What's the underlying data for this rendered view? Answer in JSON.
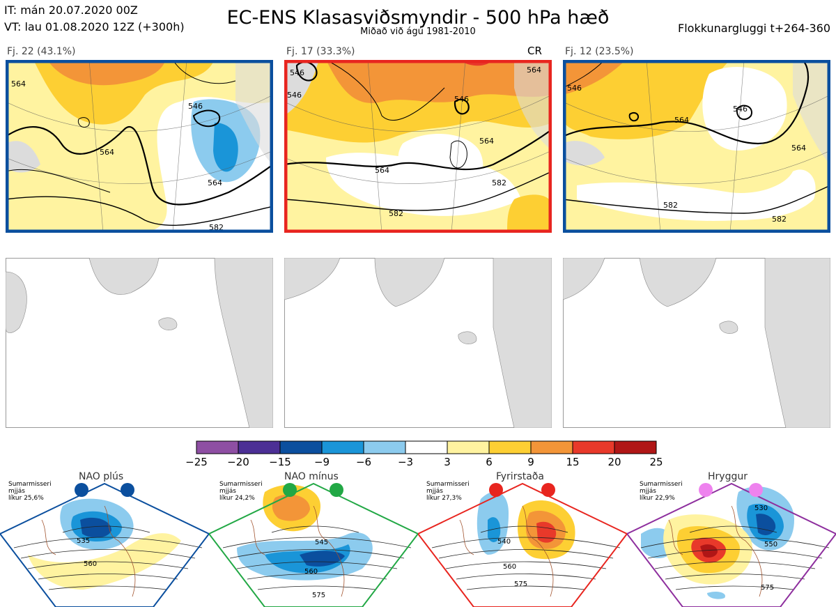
{
  "header": {
    "it_line": "IT: mán 20.07.2020 00Z",
    "vt_line": "VT: lau 01.08.2020 12Z  (+300h)",
    "title": "EC-ENS Klasasviðsmyndir - 500 hPa hæð",
    "subtitle": "Miðað við ágú 1981-2010",
    "window": "Flokkunargluggi t+264-360"
  },
  "clusters": [
    {
      "label": "Fj. 22 (43.1%)",
      "frame_color": "#0a4f9e",
      "tag": "",
      "contours": [
        "564",
        "546",
        "564",
        "564",
        "582"
      ]
    },
    {
      "label": "Fj. 17 (33.3%)",
      "frame_color": "#e8251f",
      "tag": "CR",
      "contours": [
        "546",
        "546",
        "546",
        "564",
        "564",
        "564",
        "582",
        "582"
      ]
    },
    {
      "label": "Fj. 12 (23.5%)",
      "frame_color": "#0a4f9e",
      "tag": "",
      "contours": [
        "546",
        "546",
        "564",
        "564",
        "582",
        "582"
      ]
    }
  ],
  "colorbar": {
    "ticks": [
      "−25",
      "−20",
      "−15",
      "−9",
      "−6",
      "−3",
      "3",
      "6",
      "9",
      "15",
      "20",
      "25"
    ],
    "colors": [
      "#8e4fa3",
      "#4c2f95",
      "#0b4f9e",
      "#1a95d8",
      "#8ccbee",
      "#ffffff",
      "#fff3a0",
      "#fdcf33",
      "#f39538",
      "#e8392a",
      "#b01616"
    ]
  },
  "regimes": [
    {
      "title": "NAO plús",
      "note": [
        "Sumarmisseri",
        "mjjás",
        "líkur 25,6%"
      ],
      "dot_color": "#0b4f9e",
      "border_color": "#0b4f9e",
      "labels": [
        "535",
        "560"
      ]
    },
    {
      "title": "NAO mínus",
      "note": [
        "Sumarmisseri",
        "mjjás",
        "líkur 24,2%"
      ],
      "dot_color": "#22a845",
      "border_color": "#22a845",
      "labels": [
        "545",
        "560",
        "575"
      ]
    },
    {
      "title": "Fyrirstaða",
      "note": [
        "Sumarmisseri",
        "mjjás",
        "líkur 27,3%"
      ],
      "dot_color": "#e8251f",
      "border_color": "#e8251f",
      "labels": [
        "540",
        "560",
        "575"
      ]
    },
    {
      "title": "Hryggur",
      "note": [
        "Sumarmisseri",
        "mjjás",
        "líkur 22,9%"
      ],
      "dot_color": "#ee82ee",
      "border_color": "#8e2f9e",
      "labels": [
        "530",
        "550",
        "575"
      ]
    }
  ],
  "chart_data": {
    "type": "heatmap",
    "title": "EC-ENS Klasasviðsmyndir - 500 hPa hæð",
    "subtitle": "Miðað við ágú 1981-2010",
    "cluster_probabilities": [
      {
        "cluster": "Fj. 22",
        "percent": 43.1
      },
      {
        "cluster": "Fj. 17",
        "percent": 33.3
      },
      {
        "cluster": "Fj. 12",
        "percent": 23.5
      }
    ],
    "anomaly_bins": [
      -25,
      -20,
      -15,
      -9,
      -6,
      -3,
      3,
      6,
      9,
      15,
      20,
      25
    ],
    "regime_probabilities": [
      {
        "regime": "NAO plús",
        "percent": 25.6
      },
      {
        "regime": "NAO mínus",
        "percent": 24.2
      },
      {
        "regime": "Fyrirstaða",
        "percent": 27.3
      },
      {
        "regime": "Hryggur",
        "percent": 22.9
      }
    ]
  }
}
